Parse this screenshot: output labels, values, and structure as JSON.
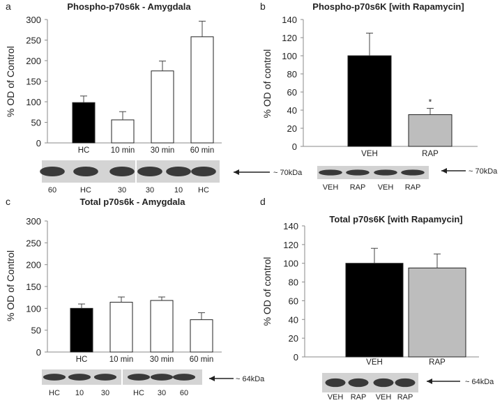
{
  "chart_data": [
    {
      "id": "a",
      "panel_label": "a",
      "type": "bar",
      "title": "Phospho-p70s6k - Amygdala",
      "ylabel": "% OD of Control",
      "ylim": [
        0,
        300
      ],
      "yticks": [
        0,
        50,
        100,
        150,
        200,
        250,
        300
      ],
      "categories": [
        "HC",
        "10 min",
        "30 min",
        "60 min"
      ],
      "values": [
        98,
        56,
        175,
        258
      ],
      "errors": [
        16,
        20,
        24,
        38
      ],
      "fills": [
        "#000000",
        "#ffffff",
        "#ffffff",
        "#ffffff"
      ],
      "significance": [
        "",
        "",
        "",
        ""
      ],
      "blot": {
        "lanes": [
          "60",
          "HC",
          "30",
          "30",
          "10",
          "HC"
        ],
        "size_label": "~ 70kDa",
        "split_after": 3
      }
    },
    {
      "id": "b",
      "panel_label": "b",
      "type": "bar",
      "title": "Phospho-p70s6K [with Rapamycin]",
      "ylabel": "% OD of control",
      "ylim": [
        0,
        140
      ],
      "yticks": [
        0,
        20,
        40,
        60,
        80,
        100,
        120,
        140
      ],
      "categories": [
        "VEH",
        "RAP"
      ],
      "values": [
        100,
        35
      ],
      "errors": [
        25,
        7
      ],
      "fills": [
        "#000000",
        "#bdbdbd"
      ],
      "significance": [
        "",
        "*"
      ],
      "blot": {
        "lanes": [
          "VEH",
          "RAP",
          "VEH",
          "RAP"
        ],
        "size_label": "~ 70kDa",
        "split_after": 0
      }
    },
    {
      "id": "c",
      "panel_label": "c",
      "type": "bar",
      "title": "Total p70s6k - Amygdala",
      "ylabel": "% OD of Control",
      "ylim": [
        0,
        300
      ],
      "yticks": [
        0,
        50,
        100,
        150,
        200,
        250,
        300
      ],
      "categories": [
        "HC",
        "10 min",
        "30 min",
        "60 min"
      ],
      "values": [
        100,
        114,
        118,
        74
      ],
      "errors": [
        10,
        12,
        8,
        16
      ],
      "fills": [
        "#000000",
        "#ffffff",
        "#ffffff",
        "#ffffff"
      ],
      "significance": [
        "",
        "",
        "",
        ""
      ],
      "blot": {
        "lanes": [
          "HC",
          "10",
          "30",
          "HC",
          "30",
          "60"
        ],
        "size_label": "~ 64kDa",
        "split_after": 3
      }
    },
    {
      "id": "d",
      "panel_label": "d",
      "type": "bar",
      "title": "Total p70s6K [with Rapamycin]",
      "ylabel": "% OD of control",
      "ylim": [
        0,
        140
      ],
      "yticks": [
        0,
        20,
        40,
        60,
        80,
        100,
        120,
        140
      ],
      "categories": [
        "VEH",
        "RAP"
      ],
      "values": [
        100,
        95
      ],
      "errors": [
        16,
        15
      ],
      "fills": [
        "#000000",
        "#bdbdbd"
      ],
      "significance": [
        "",
        ""
      ],
      "blot": {
        "lanes": [
          "VEH",
          "RAP",
          "VEH",
          "RAP"
        ],
        "size_label": "~ 64kDa",
        "split_after": 0
      }
    }
  ]
}
